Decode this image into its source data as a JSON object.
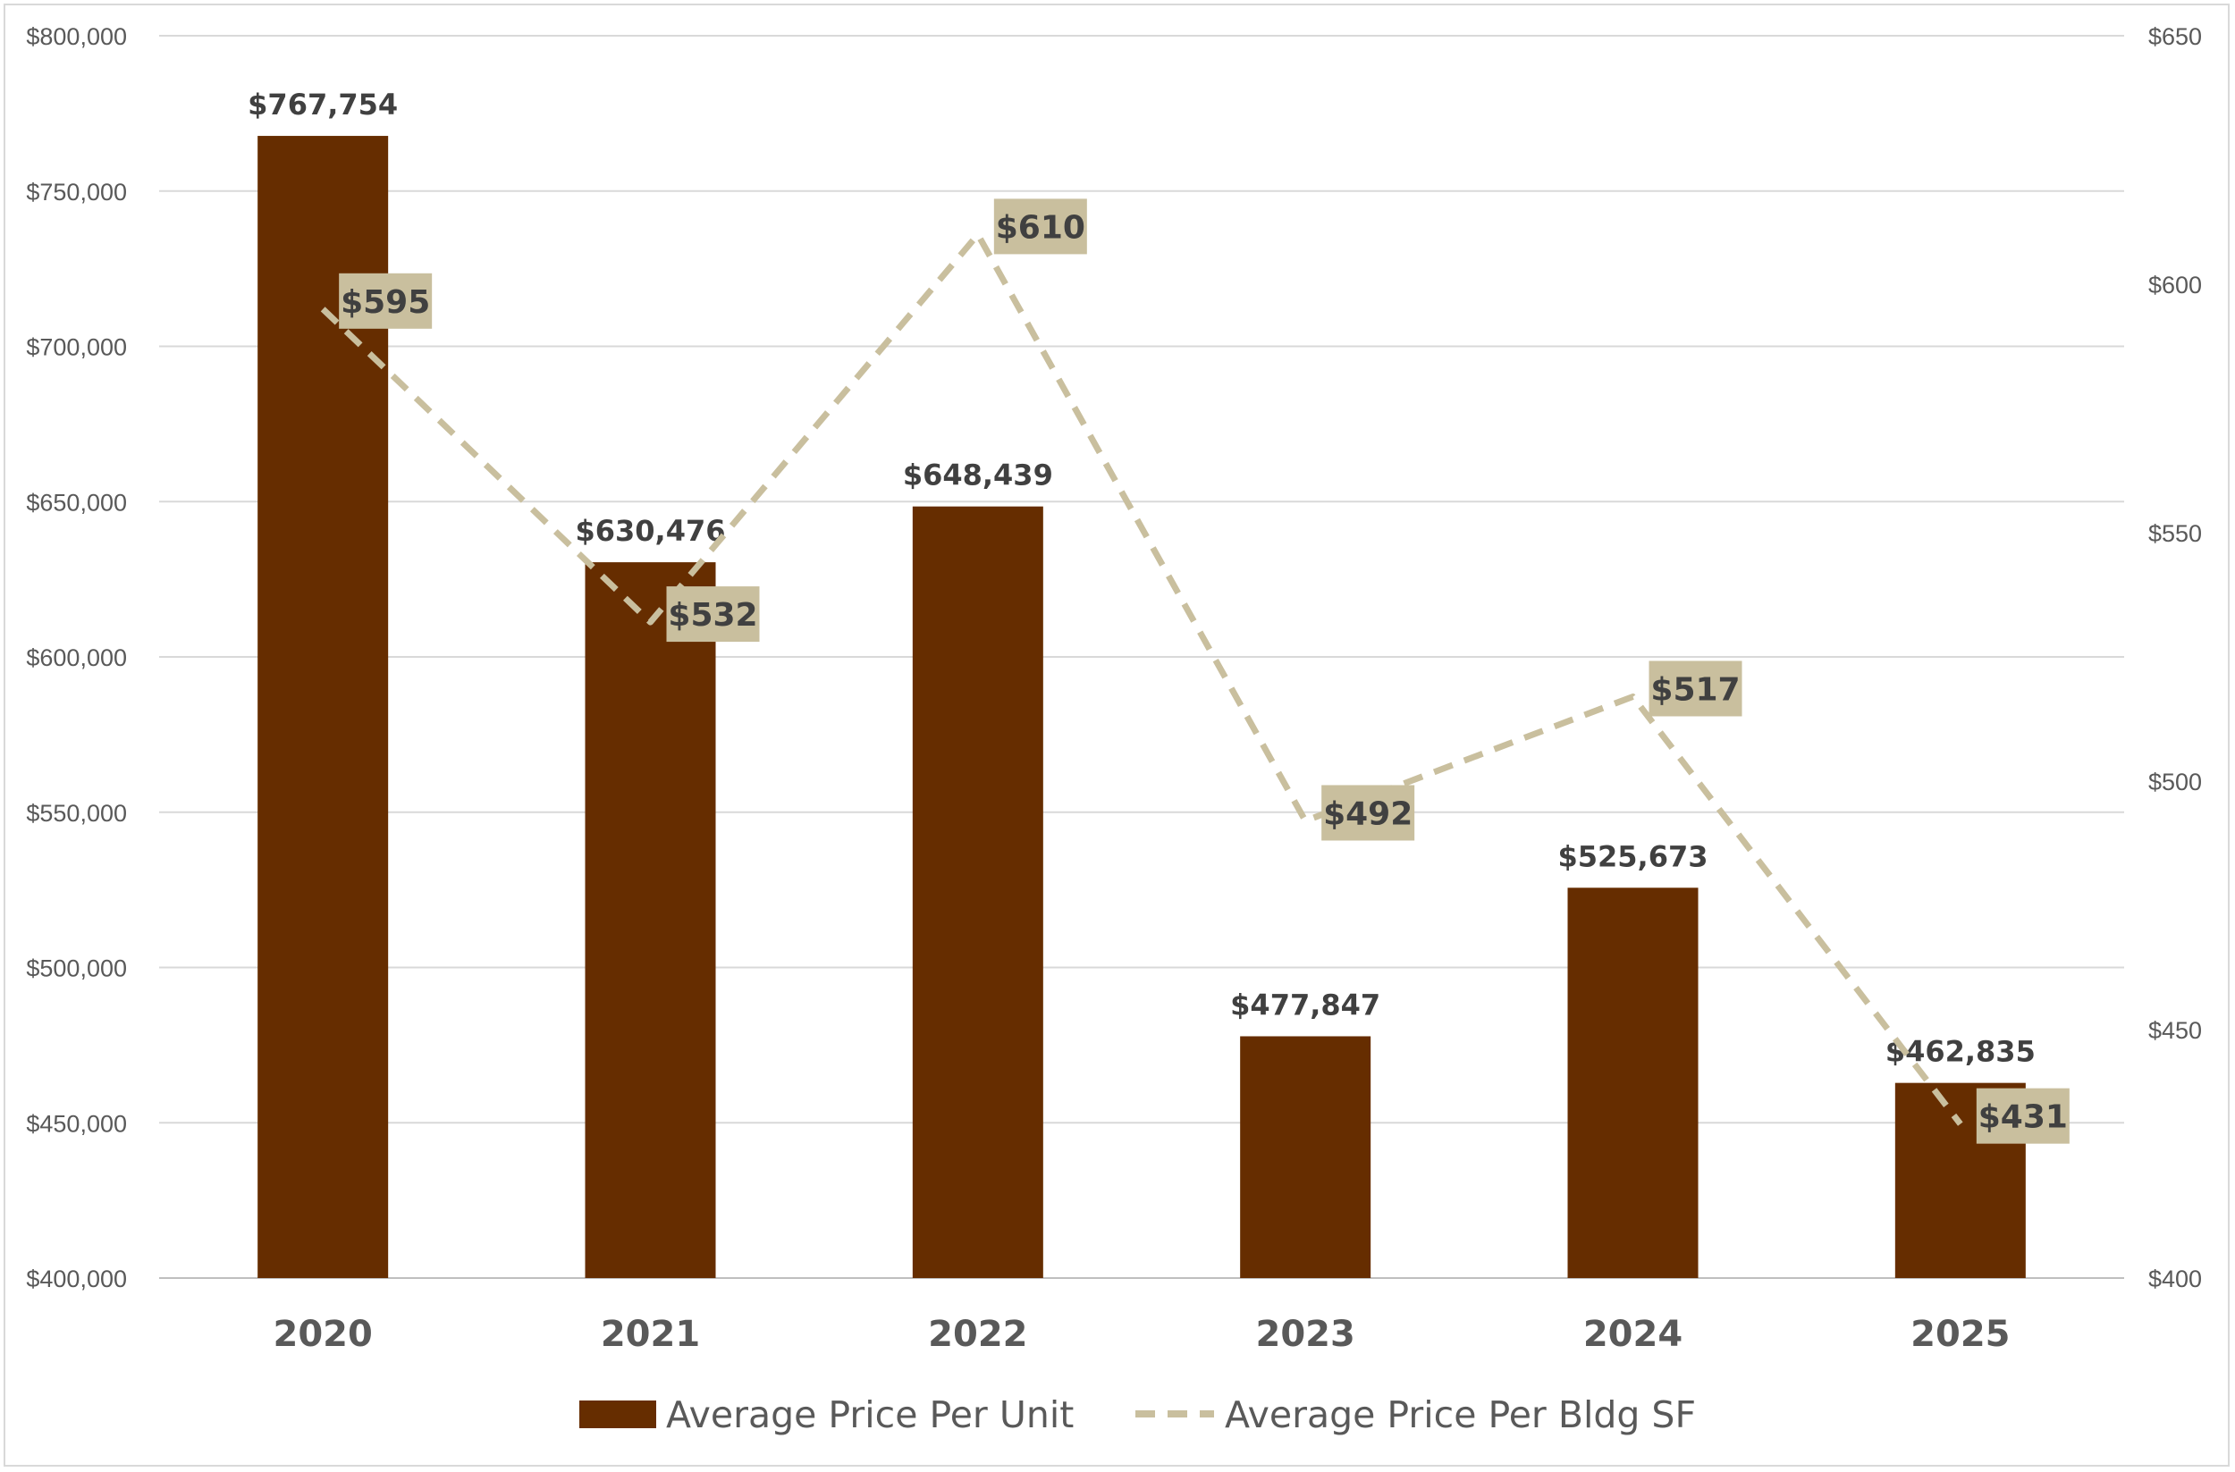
{
  "chart_data": {
    "type": "bar",
    "categories": [
      "2020",
      "2021",
      "2022",
      "2023",
      "2024",
      "2025"
    ],
    "series": [
      {
        "name": "Average Price Per Unit",
        "type": "bar",
        "axis": "left",
        "values": [
          767754,
          630476,
          648439,
          477847,
          525673,
          462835
        ],
        "labels": [
          "$767,754",
          "$630,476",
          "$648,439",
          "$477,847",
          "$525,673",
          "$462,835"
        ],
        "color": "#662d00"
      },
      {
        "name": "Average Price Per Bldg SF",
        "type": "line",
        "style": "dashed",
        "axis": "right",
        "values": [
          595,
          532,
          610,
          492,
          517,
          431
        ],
        "labels": [
          "$595",
          "$532",
          "$610",
          "$492",
          "$517",
          "$431"
        ],
        "color": "#c9bf9e"
      }
    ],
    "y_left": {
      "range": [
        400000,
        800000
      ],
      "ticks": [
        "$400,000",
        "$450,000",
        "$500,000",
        "$550,000",
        "$600,000",
        "$650,000",
        "$700,000",
        "$750,000",
        "$800,000"
      ]
    },
    "y_right": {
      "range": [
        400,
        650
      ],
      "ticks": [
        "$400",
        "$450",
        "$500",
        "$550",
        "$600",
        "$650"
      ]
    },
    "grid": true,
    "legend": "bottom",
    "title": "",
    "xlabel": "",
    "ylabel": ""
  }
}
